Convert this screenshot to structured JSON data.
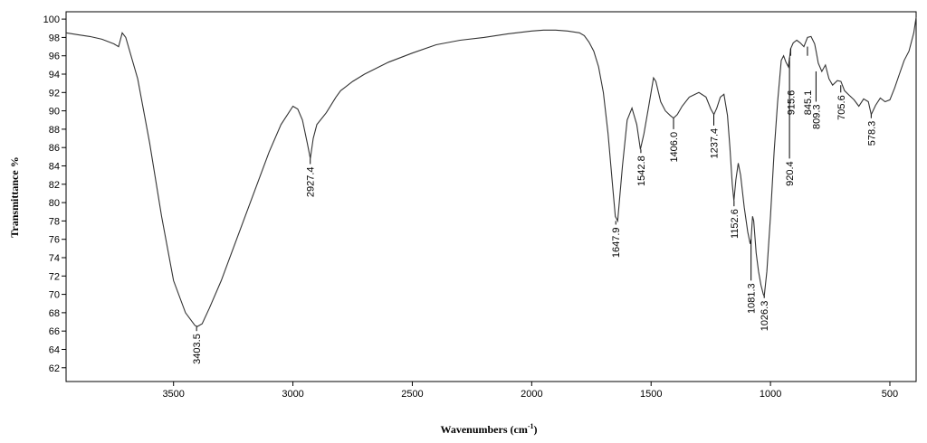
{
  "chart_data": {
    "type": "line",
    "title": "",
    "xlabel": "Wavenumbers (cm-1)",
    "xlabel_main": "Wavenumbers (cm",
    "xlabel_sup": "-1",
    "xlabel_close": ")",
    "ylabel": "Transmittance %",
    "xlim": [
      3950,
      390
    ],
    "ylim": [
      60.5,
      100.8
    ],
    "x_reversed": true,
    "grid": false,
    "line_color": "#333333",
    "x_ticks": [
      3500,
      3000,
      2500,
      2000,
      1500,
      1000,
      500
    ],
    "x_tick_labels": [
      "3500",
      "3000",
      "2500",
      "2000",
      "1500",
      "1000",
      "500"
    ],
    "y_ticks": [
      62,
      64,
      66,
      68,
      70,
      72,
      74,
      76,
      78,
      80,
      82,
      84,
      86,
      88,
      90,
      92,
      94,
      96,
      98,
      100
    ],
    "y_tick_labels": [
      "62",
      "64",
      "66",
      "68",
      "70",
      "72",
      "74",
      "76",
      "78",
      "80",
      "82",
      "84",
      "86",
      "88",
      "90",
      "92",
      "94",
      "96",
      "98",
      "100"
    ],
    "series": [
      {
        "x": [
          3950,
          3900,
          3850,
          3800,
          3750,
          3730,
          3715,
          3700,
          3650,
          3600,
          3550,
          3500,
          3450,
          3410,
          3400,
          3380,
          3350,
          3300,
          3250,
          3200,
          3150,
          3100,
          3050,
          3000,
          2980,
          2960,
          2940,
          2927,
          2915,
          2900,
          2860,
          2820,
          2800,
          2750,
          2700,
          2600,
          2500,
          2400,
          2300,
          2200,
          2100,
          2000,
          1950,
          1900,
          1850,
          1800,
          1780,
          1760,
          1740,
          1720,
          1700,
          1680,
          1660,
          1650,
          1640,
          1620,
          1600,
          1580,
          1560,
          1545,
          1530,
          1510,
          1490,
          1480,
          1460,
          1440,
          1420,
          1406,
          1390,
          1370,
          1340,
          1300,
          1270,
          1250,
          1237,
          1225,
          1210,
          1195,
          1180,
          1170,
          1160,
          1153,
          1145,
          1135,
          1125,
          1110,
          1095,
          1085,
          1081,
          1075,
          1070,
          1060,
          1050,
          1040,
          1030,
          1026,
          1015,
          1000,
          985,
          970,
          955,
          945,
          935,
          925,
          920,
          915,
          905,
          890,
          875,
          860,
          845,
          830,
          815,
          809,
          800,
          785,
          770,
          755,
          740,
          720,
          705,
          690,
          670,
          650,
          630,
          610,
          590,
          578,
          560,
          540,
          520,
          500,
          480,
          460,
          440,
          420,
          400,
          390
        ],
        "y": [
          98.5,
          98.3,
          98.1,
          97.8,
          97.3,
          97.0,
          98.5,
          98.0,
          93.5,
          86.5,
          78.5,
          71.5,
          68.0,
          66.6,
          66.5,
          66.8,
          68.5,
          71.5,
          75.0,
          78.5,
          82.0,
          85.5,
          88.5,
          90.5,
          90.2,
          89.0,
          86.5,
          84.8,
          87.0,
          88.5,
          89.8,
          91.5,
          92.2,
          93.2,
          94.0,
          95.3,
          96.3,
          97.2,
          97.7,
          98.0,
          98.4,
          98.7,
          98.8,
          98.8,
          98.7,
          98.5,
          98.2,
          97.5,
          96.5,
          94.8,
          92.0,
          87.5,
          81.5,
          78.5,
          78.0,
          84.0,
          89.0,
          90.3,
          88.5,
          85.8,
          87.5,
          90.5,
          93.6,
          93.2,
          91.0,
          90.0,
          89.5,
          89.2,
          89.6,
          90.5,
          91.5,
          92.0,
          91.5,
          90.2,
          89.6,
          90.3,
          91.5,
          91.8,
          89.5,
          86.0,
          82.0,
          80.2,
          82.5,
          84.3,
          83.0,
          79.5,
          76.8,
          75.5,
          76.0,
          78.5,
          78.0,
          74.5,
          72.5,
          71.0,
          70.0,
          69.8,
          72.5,
          78.5,
          85.5,
          91.0,
          95.5,
          96.0,
          95.3,
          94.8,
          95.8,
          96.8,
          97.4,
          97.7,
          97.4,
          97.0,
          98.0,
          98.1,
          97.3,
          96.5,
          95.2,
          94.3,
          95.0,
          93.5,
          92.8,
          93.3,
          93.2,
          92.2,
          91.7,
          91.2,
          90.5,
          91.3,
          91.0,
          89.6,
          90.6,
          91.4,
          91.0,
          91.2,
          92.5,
          94.0,
          95.5,
          96.5,
          98.5,
          100.2
        ]
      }
    ],
    "peaks": [
      {
        "label": "3403.5",
        "x": 3403.5,
        "y": 66.5,
        "dir": "below",
        "marker_to": 66.0
      },
      {
        "label": "2927.4",
        "x": 2927.4,
        "y": 84.8,
        "dir": "below",
        "marker_to": 84.2
      },
      {
        "label": "1647.9",
        "x": 1647.9,
        "y": 78.0,
        "dir": "below",
        "marker_to": 77.6
      },
      {
        "label": "1542.8",
        "x": 1542.8,
        "y": 85.8,
        "dir": "below",
        "marker_to": 85.4
      },
      {
        "label": "1406.0",
        "x": 1406.0,
        "y": 89.2,
        "dir": "below",
        "marker_to": 88.0
      },
      {
        "label": "1237.4",
        "x": 1237.4,
        "y": 89.6,
        "dir": "below",
        "marker_to": 88.4
      },
      {
        "label": "1152.6",
        "x": 1152.6,
        "y": 80.2,
        "dir": "below",
        "marker_to": 79.6
      },
      {
        "label": "1081.3",
        "x": 1081.3,
        "y": 76.0,
        "dir": "below",
        "marker_to": 71.5
      },
      {
        "label": "1026.3",
        "x": 1026.3,
        "y": 69.8,
        "dir": "below",
        "marker_to": 69.6
      },
      {
        "label": "920.4",
        "x": 920.4,
        "y": 95.8,
        "dir": "below",
        "marker_to": 84.8
      },
      {
        "label": "915.6",
        "x": 915.6,
        "y": 96.8,
        "dir": "above",
        "marker_to": 96.0
      },
      {
        "label": "845.1",
        "x": 845.1,
        "y": 97.0,
        "dir": "above",
        "marker_to": 96.0
      },
      {
        "label": "809.3",
        "x": 809.3,
        "y": 94.3,
        "dir": "below",
        "marker_to": 91.0
      },
      {
        "label": "705.6",
        "x": 705.6,
        "y": 92.8,
        "dir": "below",
        "marker_to": 92.0
      },
      {
        "label": "578.3",
        "x": 578.3,
        "y": 89.6,
        "dir": "below",
        "marker_to": 89.2
      }
    ]
  }
}
